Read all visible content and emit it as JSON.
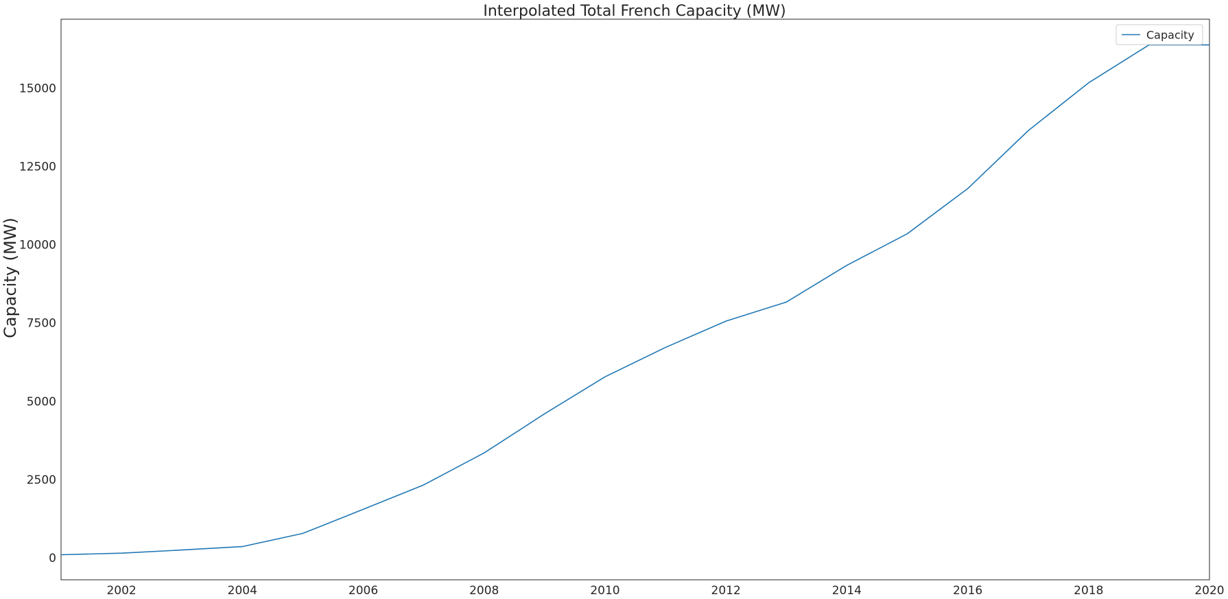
{
  "chart_data": {
    "type": "line",
    "title": "Interpolated Total French Capacity (MW)",
    "xlabel": "",
    "ylabel": "Capacity (MW)",
    "xlim": [
      2001,
      2020
    ],
    "ylim": [
      -700,
      17200
    ],
    "x_ticks": [
      "2002",
      "2004",
      "2006",
      "2008",
      "2010",
      "2012",
      "2014",
      "2016",
      "2018",
      "2020"
    ],
    "y_ticks": [
      "0",
      "2500",
      "5000",
      "7500",
      "10000",
      "12500",
      "15000"
    ],
    "grid": false,
    "legend_position": "top-right",
    "series": [
      {
        "name": "Capacity",
        "color": "#1f77b4",
        "x": [
          2001,
          2002,
          2003,
          2004,
          2005,
          2006,
          2007,
          2008,
          2009,
          2010,
          2011,
          2012,
          2013,
          2014,
          2015,
          2016,
          2017,
          2018,
          2019,
          2020
        ],
        "y": [
          100,
          150,
          250,
          360,
          780,
          1550,
          2330,
          3350,
          4600,
          5780,
          6720,
          7560,
          8170,
          9340,
          10350,
          11790,
          13640,
          15170,
          16380,
          16380
        ]
      }
    ]
  }
}
